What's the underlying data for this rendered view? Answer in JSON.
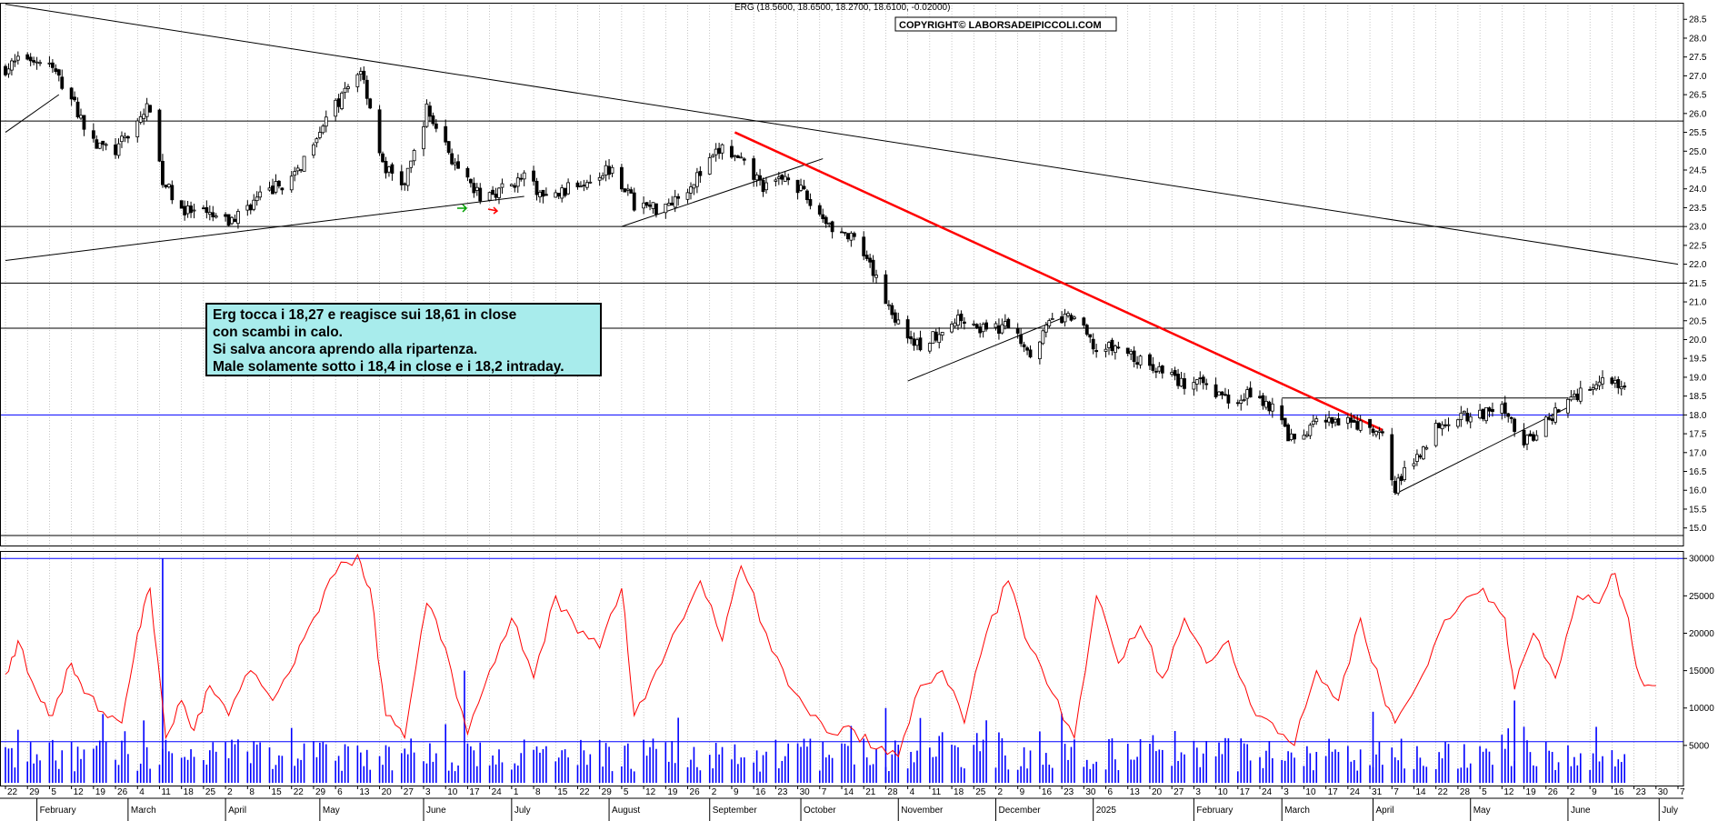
{
  "header": {
    "quote": "ERG (18.5600, 18.6500, 18.2700, 18.6100, -0.02000)",
    "copyright": "COPYRIGHT© LABORSADEIPICCOLI.COM"
  },
  "comment": {
    "lines": [
      "Erg tocca i 18,27 e reagisce sui 18,61 in close",
      "con scambi in calo.",
      "Si salva ancora aprendo alla ripartenza.",
      "Male solamente sotto i 18,4 in close e i 18,2 intraday."
    ]
  },
  "colors": {
    "candle_body": "#000000",
    "trendline_red": "#ff0000",
    "support_blue": "#0000ff",
    "volume_bars": "#0000ff",
    "oscillator": "#ff0000",
    "box_fill": "#a8ecec",
    "grid": "#a0a0a0"
  },
  "chart_data": [
    {
      "type": "candlestick",
      "title": "ERG (18.5600, 18.6500, 18.2700, 18.6100, -0.02000)",
      "ylim": [
        14.5,
        29.0
      ],
      "y_ticks": [
        "15.0",
        "15.5",
        "16.0",
        "16.5",
        "17.0",
        "17.5",
        "18.0",
        "18.5",
        "19.0",
        "19.5",
        "20.0",
        "20.5",
        "21.0",
        "21.5",
        "22.0",
        "22.5",
        "23.0",
        "23.5",
        "24.0",
        "24.5",
        "25.0",
        "25.5",
        "26.0",
        "26.5",
        "27.0",
        "27.5",
        "28.0",
        "28.5"
      ],
      "x_range": [
        "2024-01-22",
        "2025-07-07"
      ],
      "x_day_ticks": [
        "22",
        "29",
        "5",
        "12",
        "19",
        "26",
        "4",
        "11",
        "18",
        "25",
        "2",
        "8",
        "15",
        "22",
        "29",
        "6",
        "13",
        "20",
        "27",
        "3",
        "10",
        "17",
        "24",
        "1",
        "8",
        "15",
        "22",
        "29",
        "5",
        "12",
        "19",
        "26",
        "2",
        "9",
        "16",
        "23",
        "30",
        "7",
        "14",
        "21",
        "28",
        "4",
        "11",
        "18",
        "25",
        "2",
        "9",
        "16",
        "23",
        "30",
        "6",
        "13",
        "20",
        "27",
        "3",
        "10",
        "17",
        "24",
        "3",
        "10",
        "17",
        "24",
        "31",
        "7",
        "14",
        "22",
        "28",
        "5",
        "12",
        "19",
        "26",
        "2",
        "9",
        "16",
        "23",
        "30",
        "7"
      ],
      "x_months": [
        "February",
        "March",
        "April",
        "May",
        "June",
        "July",
        "August",
        "September",
        "October",
        "November",
        "December",
        "2025",
        "February",
        "March",
        "April",
        "May",
        "June",
        "July"
      ],
      "close_path": [
        [
          "2024-01-22",
          27.2
        ],
        [
          "2024-01-29",
          27.5
        ],
        [
          "2024-02-05",
          27.3
        ],
        [
          "2024-02-12",
          26.4
        ],
        [
          "2024-02-19",
          25.2
        ],
        [
          "2024-02-26",
          25.0
        ],
        [
          "2024-03-04",
          25.8
        ],
        [
          "2024-03-08",
          26.2
        ],
        [
          "2024-03-12",
          24.2
        ],
        [
          "2024-03-19",
          23.4
        ],
        [
          "2024-03-26",
          23.3
        ],
        [
          "2024-04-02",
          23.1
        ],
        [
          "2024-04-09",
          23.6
        ],
        [
          "2024-04-16",
          24.0
        ],
        [
          "2024-04-23",
          24.3
        ],
        [
          "2024-04-30",
          25.5
        ],
        [
          "2024-05-07",
          26.3
        ],
        [
          "2024-05-14",
          27.2
        ],
        [
          "2024-05-17",
          26.2
        ],
        [
          "2024-05-21",
          24.6
        ],
        [
          "2024-05-28",
          24.1
        ],
        [
          "2024-06-04",
          26.1
        ],
        [
          "2024-06-10",
          25.2
        ],
        [
          "2024-06-14",
          24.4
        ],
        [
          "2024-06-21",
          23.8
        ],
        [
          "2024-06-28",
          24.0
        ],
        [
          "2024-07-05",
          24.3
        ],
        [
          "2024-07-12",
          23.7
        ],
        [
          "2024-07-19",
          24.0
        ],
        [
          "2024-07-26",
          24.3
        ],
        [
          "2024-08-02",
          24.6
        ],
        [
          "2024-08-09",
          23.6
        ],
        [
          "2024-08-16",
          23.5
        ],
        [
          "2024-08-23",
          23.8
        ],
        [
          "2024-08-30",
          24.4
        ],
        [
          "2024-09-06",
          25.1
        ],
        [
          "2024-09-13",
          24.6
        ],
        [
          "2024-09-20",
          24.0
        ],
        [
          "2024-09-27",
          24.4
        ],
        [
          "2024-10-04",
          23.6
        ],
        [
          "2024-10-11",
          23.0
        ],
        [
          "2024-10-18",
          22.6
        ],
        [
          "2024-10-25",
          21.6
        ],
        [
          "2024-11-01",
          20.4
        ],
        [
          "2024-11-08",
          19.8
        ],
        [
          "2024-11-15",
          20.3
        ],
        [
          "2024-11-22",
          20.6
        ],
        [
          "2024-11-29",
          20.2
        ],
        [
          "2024-12-06",
          20.4
        ],
        [
          "2024-12-13",
          19.7
        ],
        [
          "2024-12-20",
          20.5
        ],
        [
          "2024-12-27",
          20.6
        ],
        [
          "2025-01-03",
          19.7
        ],
        [
          "2025-01-10",
          19.8
        ],
        [
          "2025-01-17",
          19.4
        ],
        [
          "2025-01-24",
          19.2
        ],
        [
          "2025-01-31",
          18.8
        ],
        [
          "2025-02-07",
          18.8
        ],
        [
          "2025-02-14",
          18.4
        ],
        [
          "2025-02-21",
          18.6
        ],
        [
          "2025-02-28",
          18.2
        ],
        [
          "2025-03-07",
          17.2
        ],
        [
          "2025-03-14",
          17.8
        ],
        [
          "2025-03-21",
          17.8
        ],
        [
          "2025-03-28",
          17.7
        ],
        [
          "2025-04-04",
          17.4
        ],
        [
          "2025-04-08",
          16.1
        ],
        [
          "2025-04-15",
          16.9
        ],
        [
          "2025-04-22",
          17.8
        ],
        [
          "2025-04-29",
          18.0
        ],
        [
          "2025-05-06",
          18.0
        ],
        [
          "2025-05-13",
          18.2
        ],
        [
          "2025-05-19",
          17.2
        ],
        [
          "2025-05-26",
          17.8
        ],
        [
          "2025-06-02",
          18.4
        ],
        [
          "2025-06-09",
          18.8
        ],
        [
          "2025-06-16",
          19.0
        ],
        [
          "2025-06-20",
          18.61
        ]
      ],
      "horizontal_lines": [
        {
          "y": 25.8,
          "color": "#000000"
        },
        {
          "y": 23.0,
          "color": "#000000"
        },
        {
          "y": 21.5,
          "color": "#000000"
        },
        {
          "y": 20.3,
          "color": "#000000"
        },
        {
          "y": 18.0,
          "color": "#0000ff"
        },
        {
          "y": 14.8,
          "color": "#000000"
        }
      ],
      "trendlines": [
        {
          "from": [
            "2024-01-22",
            28.9
          ],
          "to": [
            "2025-07-07",
            22.0
          ],
          "color": "#000000"
        },
        {
          "from": [
            "2024-01-22",
            22.1
          ],
          "to": [
            "2024-07-05",
            23.8
          ],
          "color": "#000000"
        },
        {
          "from": [
            "2024-01-22",
            25.5
          ],
          "to": [
            "2024-02-08",
            26.5
          ],
          "color": "#000000"
        },
        {
          "from": [
            "2024-08-05",
            23.0
          ],
          "to": [
            "2024-10-08",
            24.8
          ],
          "color": "#000000"
        },
        {
          "from": [
            "2024-11-04",
            18.9
          ],
          "to": [
            "2024-12-24",
            20.6
          ],
          "color": "#000000"
        },
        {
          "from": [
            "2025-04-08",
            15.9
          ],
          "to": [
            "2025-06-02",
            18.2
          ],
          "color": "#000000"
        },
        {
          "from": [
            "2025-03-03",
            18.45
          ],
          "to": [
            "2025-06-02",
            18.45
          ],
          "color": "#000000"
        },
        {
          "from": [
            "2024-09-10",
            25.5
          ],
          "to": [
            "2025-04-04",
            17.6
          ],
          "color": "#ff0000"
        }
      ]
    },
    {
      "type": "bar+line",
      "series_bars": "volume",
      "series_line": "volume average",
      "ylim": [
        0,
        31000
      ],
      "y_ticks": [
        "5000",
        "10000",
        "15000",
        "20000",
        "25000",
        "30000"
      ],
      "horizontal_lines": [
        {
          "y": 5500,
          "color": "#0000ff"
        },
        {
          "y": 30000,
          "color": "#0000ff"
        }
      ],
      "bar_spikes": [
        [
          "2024-03-12",
          30000
        ],
        [
          "2024-06-16",
          15000
        ],
        [
          "2024-10-28",
          10000
        ],
        [
          "2025-04-01",
          9500
        ],
        [
          "2025-05-16",
          11000
        ]
      ],
      "line_path": [
        [
          "2024-01-22",
          14500
        ],
        [
          "2024-01-26",
          19000
        ],
        [
          "2024-02-01",
          12000
        ],
        [
          "2024-02-06",
          9000
        ],
        [
          "2024-02-12",
          16000
        ],
        [
          "2024-02-16",
          12000
        ],
        [
          "2024-02-22",
          9500
        ],
        [
          "2024-02-28",
          8000
        ],
        [
          "2024-03-04",
          20000
        ],
        [
          "2024-03-08",
          26000
        ],
        [
          "2024-03-13",
          6000
        ],
        [
          "2024-03-18",
          11000
        ],
        [
          "2024-03-22",
          7000
        ],
        [
          "2024-03-27",
          13000
        ],
        [
          "2024-04-02",
          9000
        ],
        [
          "2024-04-09",
          15000
        ],
        [
          "2024-04-16",
          11000
        ],
        [
          "2024-04-23",
          16000
        ],
        [
          "2024-04-29",
          22000
        ],
        [
          "2024-05-06",
          28000
        ],
        [
          "2024-05-13",
          30500
        ],
        [
          "2024-05-17",
          26000
        ],
        [
          "2024-05-22",
          9000
        ],
        [
          "2024-05-28",
          6000
        ],
        [
          "2024-06-04",
          24000
        ],
        [
          "2024-06-10",
          18000
        ],
        [
          "2024-06-17",
          6500
        ],
        [
          "2024-06-24",
          15000
        ],
        [
          "2024-07-01",
          22000
        ],
        [
          "2024-07-08",
          14000
        ],
        [
          "2024-07-15",
          25000
        ],
        [
          "2024-07-22",
          20000
        ],
        [
          "2024-07-29",
          18000
        ],
        [
          "2024-08-05",
          26000
        ],
        [
          "2024-08-09",
          9000
        ],
        [
          "2024-08-16",
          15000
        ],
        [
          "2024-08-23",
          21000
        ],
        [
          "2024-08-30",
          27000
        ],
        [
          "2024-09-06",
          19000
        ],
        [
          "2024-09-12",
          29000
        ],
        [
          "2024-09-20",
          20000
        ],
        [
          "2024-09-27",
          13000
        ],
        [
          "2024-10-04",
          9000
        ],
        [
          "2024-10-11",
          6500
        ],
        [
          "2024-10-18",
          7000
        ],
        [
          "2024-10-25",
          4500
        ],
        [
          "2024-11-01",
          3500
        ],
        [
          "2024-11-08",
          13000
        ],
        [
          "2024-11-15",
          15000
        ],
        [
          "2024-11-22",
          8000
        ],
        [
          "2024-11-29",
          20000
        ],
        [
          "2024-12-06",
          27000
        ],
        [
          "2024-12-13",
          18000
        ],
        [
          "2024-12-20",
          12000
        ],
        [
          "2024-12-27",
          6000
        ],
        [
          "2025-01-03",
          25000
        ],
        [
          "2025-01-10",
          16000
        ],
        [
          "2025-01-17",
          21000
        ],
        [
          "2025-01-24",
          14000
        ],
        [
          "2025-01-31",
          22000
        ],
        [
          "2025-02-07",
          16000
        ],
        [
          "2025-02-14",
          19000
        ],
        [
          "2025-02-21",
          10500
        ],
        [
          "2025-02-28",
          8000
        ],
        [
          "2025-03-07",
          5000
        ],
        [
          "2025-03-14",
          15000
        ],
        [
          "2025-03-21",
          11000
        ],
        [
          "2025-03-28",
          22000
        ],
        [
          "2025-04-04",
          12000
        ],
        [
          "2025-04-08",
          8000
        ],
        [
          "2025-04-15",
          13000
        ],
        [
          "2025-04-22",
          20000
        ],
        [
          "2025-04-29",
          24000
        ],
        [
          "2025-05-06",
          26000
        ],
        [
          "2025-05-13",
          22000
        ],
        [
          "2025-05-16",
          12500
        ],
        [
          "2025-05-22",
          20000
        ],
        [
          "2025-05-29",
          14000
        ],
        [
          "2025-06-05",
          25000
        ],
        [
          "2025-06-12",
          24000
        ],
        [
          "2025-06-17",
          28000
        ],
        [
          "2025-06-20",
          23500
        ],
        [
          "2025-06-25",
          14000
        ],
        [
          "2025-06-30",
          13000
        ]
      ]
    }
  ]
}
